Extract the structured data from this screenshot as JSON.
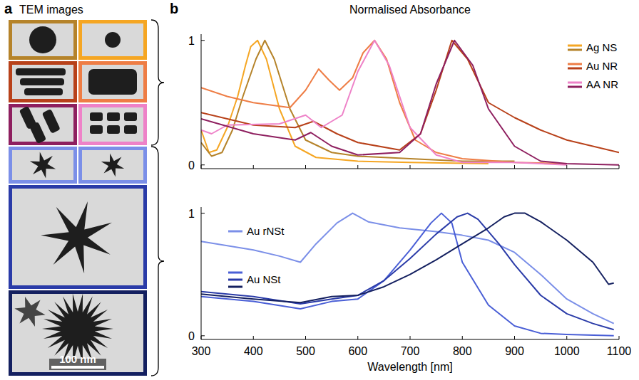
{
  "panels": {
    "a": {
      "label": "a",
      "title": "TEM images",
      "scale_bar": "100 nm"
    },
    "b": {
      "label": "b"
    }
  },
  "chart_data": [
    {
      "type": "line",
      "title": "Normalised Absorbance",
      "xlim": [
        300,
        1100
      ],
      "xticks": [
        300,
        400,
        500,
        600,
        700,
        800,
        900,
        1000,
        1100
      ],
      "ylim": [
        -0.03,
        1.05
      ],
      "yticks": [
        0,
        1
      ],
      "tick_labels": "y",
      "legend": "upper right",
      "series": [
        {
          "name": "Ag NS",
          "color": "#F5A623",
          "x": [
            300,
            315,
            330,
            350,
            370,
            385,
            395,
            408,
            425,
            450,
            480,
            520,
            600,
            700,
            850
          ],
          "values": [
            0.28,
            0.1,
            0.12,
            0.3,
            0.55,
            0.8,
            0.95,
            1,
            0.85,
            0.45,
            0.15,
            0.06,
            0.03,
            0.02,
            0.01
          ]
        },
        {
          "name": "Ag NS",
          "color": "#B5832A",
          "x": [
            300,
            320,
            340,
            360,
            380,
            405,
            422,
            440,
            470,
            500,
            550,
            600,
            700,
            800,
            900
          ],
          "values": [
            0.18,
            0.07,
            0.1,
            0.28,
            0.55,
            0.85,
            1,
            0.85,
            0.45,
            0.2,
            0.1,
            0.07,
            0.05,
            0.03,
            0.03
          ]
        },
        {
          "name": "Au NR",
          "color": "#EE7D45",
          "x": [
            300,
            350,
            400,
            470,
            500,
            525,
            545,
            565,
            590,
            610,
            632,
            655,
            680,
            710,
            750,
            800,
            900,
            1000
          ],
          "values": [
            0.62,
            0.55,
            0.5,
            0.46,
            0.6,
            0.77,
            0.68,
            0.6,
            0.7,
            0.9,
            1,
            0.85,
            0.5,
            0.2,
            0.1,
            0.05,
            0.02,
            0.01
          ]
        },
        {
          "name": "Au NR",
          "color": "#B8411A",
          "x": [
            300,
            400,
            480,
            515,
            560,
            600,
            680,
            720,
            750,
            780,
            810,
            850,
            900,
            950,
            1000,
            1100
          ],
          "values": [
            0.42,
            0.32,
            0.3,
            0.35,
            0.25,
            0.18,
            0.12,
            0.25,
            0.6,
            1,
            0.85,
            0.5,
            0.38,
            0.28,
            0.2,
            0.1
          ]
        },
        {
          "name": "AA NR",
          "color": "#EE82C8",
          "x": [
            300,
            320,
            350,
            450,
            500,
            530,
            570,
            600,
            632,
            660,
            700,
            750,
            800,
            900,
            1000
          ],
          "values": [
            0.28,
            0.25,
            0.32,
            0.33,
            0.4,
            0.3,
            0.4,
            0.75,
            1,
            0.8,
            0.3,
            0.08,
            0.02,
            0.02,
            0
          ]
        },
        {
          "name": "AA NR",
          "color": "#8E1F5F",
          "x": [
            300,
            400,
            480,
            510,
            550,
            600,
            680,
            720,
            750,
            785,
            820,
            850,
            900,
            950,
            1000,
            1100
          ],
          "values": [
            0.37,
            0.25,
            0.2,
            0.26,
            0.15,
            0.08,
            0.1,
            0.25,
            0.65,
            1,
            0.8,
            0.45,
            0.15,
            0.03,
            0.01,
            0
          ]
        }
      ]
    },
    {
      "type": "line",
      "xlabel": "Wavelength [nm]",
      "xlim": [
        300,
        1100
      ],
      "xticks": [
        300,
        400,
        500,
        600,
        700,
        800,
        900,
        1000,
        1100
      ],
      "ylim": [
        -0.03,
        1.05
      ],
      "yticks": [
        0,
        1
      ],
      "legend": "upper left",
      "series": [
        {
          "name": "Au rNSt",
          "color": "#7B8FE8",
          "x": [
            300,
            400,
            450,
            490,
            520,
            560,
            590,
            620,
            680,
            750,
            800,
            850,
            900,
            950,
            1000,
            1050,
            1090
          ],
          "values": [
            0.77,
            0.7,
            0.65,
            0.6,
            0.75,
            0.92,
            1,
            0.93,
            0.88,
            0.85,
            0.82,
            0.78,
            0.68,
            0.5,
            0.3,
            0.18,
            0.1
          ]
        },
        {
          "name": "Au NSt",
          "color": "#4A5FD6",
          "x": [
            300,
            400,
            490,
            550,
            600,
            650,
            700,
            740,
            760,
            780,
            800,
            850,
            900,
            950,
            1000,
            1090
          ],
          "values": [
            0.32,
            0.28,
            0.22,
            0.28,
            0.3,
            0.45,
            0.7,
            0.92,
            1,
            0.92,
            0.6,
            0.25,
            0.08,
            0.02,
            0.01,
            0
          ]
        },
        {
          "name": "Au NSt",
          "color": "#2A3BA8",
          "x": [
            300,
            400,
            490,
            550,
            600,
            650,
            700,
            750,
            790,
            810,
            830,
            870,
            900,
            950,
            1000,
            1050,
            1090
          ],
          "values": [
            0.36,
            0.32,
            0.26,
            0.3,
            0.33,
            0.45,
            0.63,
            0.83,
            0.97,
            1,
            0.95,
            0.75,
            0.58,
            0.33,
            0.18,
            0.1,
            0.05
          ]
        },
        {
          "name": "Au NSt",
          "color": "#142060",
          "x": [
            300,
            400,
            490,
            550,
            600,
            650,
            700,
            750,
            800,
            850,
            880,
            900,
            920,
            950,
            1000,
            1050,
            1080,
            1090
          ],
          "values": [
            0.34,
            0.3,
            0.27,
            0.32,
            0.33,
            0.4,
            0.5,
            0.62,
            0.75,
            0.88,
            0.97,
            1,
            1,
            0.93,
            0.78,
            0.6,
            0.42,
            0.43
          ]
        }
      ]
    }
  ]
}
